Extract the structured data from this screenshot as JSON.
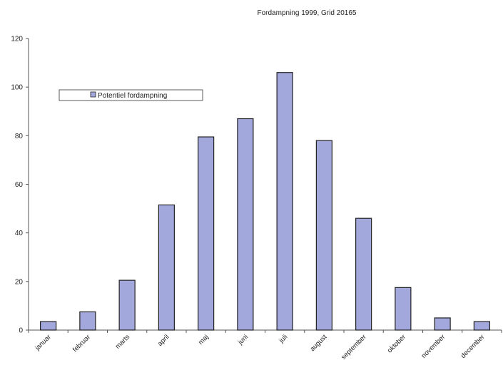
{
  "chart_data": {
    "type": "bar",
    "title": "Fordampning 1999,  Grid 20165",
    "xlabel": "",
    "ylabel": "",
    "categories": [
      "januar",
      "februar",
      "marts",
      "april",
      "maj",
      "juni",
      "juli",
      "august",
      "september",
      "oktober",
      "november",
      "december"
    ],
    "series": [
      {
        "name": "Potentiel fordampning",
        "values": [
          3.5,
          7.5,
          20.5,
          51.5,
          79.5,
          87,
          106,
          78,
          46,
          17.5,
          5,
          3.5
        ]
      }
    ],
    "ylim": [
      0,
      120
    ],
    "yticks": [
      0,
      20,
      40,
      60,
      80,
      100,
      120
    ],
    "grid": false,
    "legend_position": "upper-left",
    "colors": {
      "bar_fill": "#a3a8dc",
      "bar_stroke": "#222222",
      "axis": "#555555"
    }
  }
}
